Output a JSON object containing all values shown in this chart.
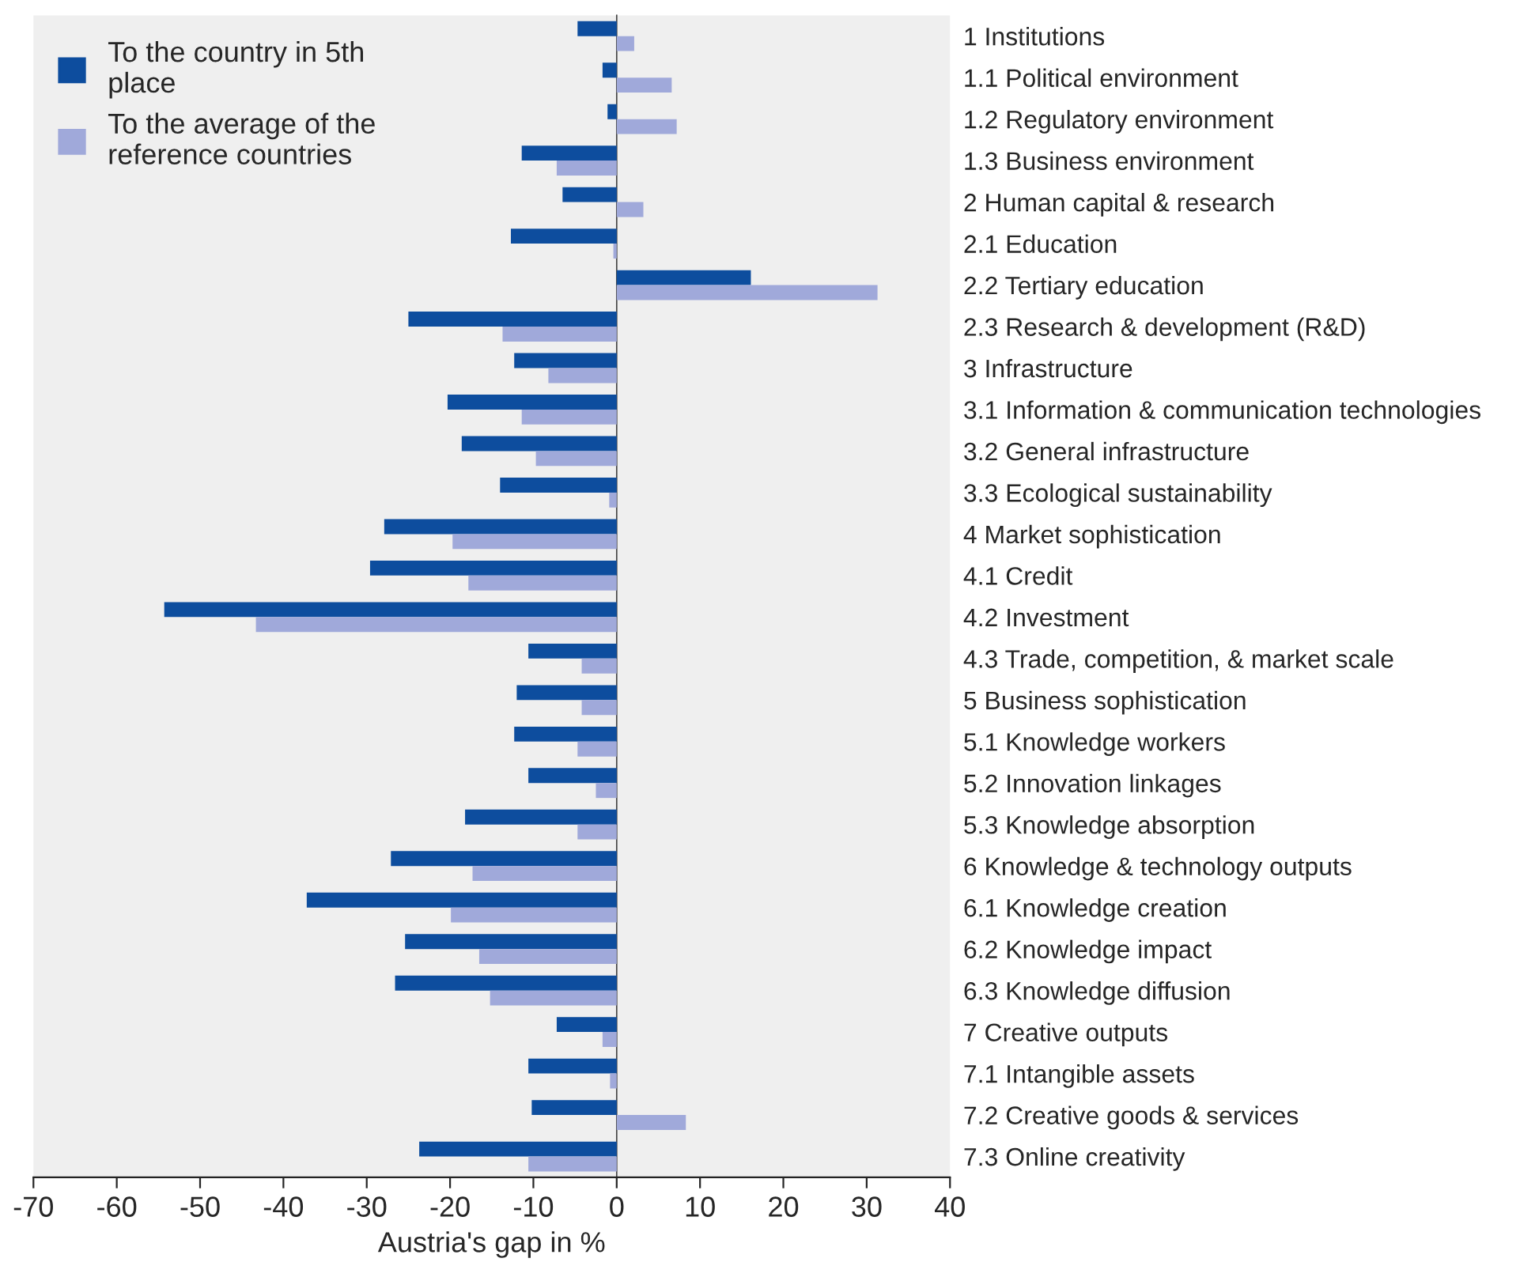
{
  "chart_data": {
    "type": "bar",
    "orientation": "horizontal",
    "xlabel": "Austria's gap in %",
    "categories": [
      "1 Institutions",
      "1.1 Political environment",
      "1.2 Regulatory environment",
      "1.3 Business environment",
      "2 Human capital & research",
      "2.1 Education",
      "2.2 Tertiary education",
      "2.3 Research & development (R&D)",
      "3 Infrastructure",
      "3.1 Information & communication technologies",
      "3.2 General infrastructure",
      "3.3 Ecological sustainability",
      "4 Market sophistication",
      "4.1 Credit",
      "4.2 Investment",
      "4.3 Trade, competition, & market scale",
      "5 Business sophistication",
      "5.1 Knowledge workers",
      "5.2 Innovation linkages",
      "5.3 Knowledge absorption",
      "6 Knowledge & technology outputs",
      "6.1 Knowledge creation",
      "6.2 Knowledge impact",
      "6.3 Knowledge diffusion",
      "7 Creative outputs",
      "7.1 Intangible assets",
      "7.2 Creative goods & services",
      "7.3 Online creativity"
    ],
    "series": [
      {
        "name": "To the country in 5th place",
        "color": "#0d4d9e",
        "values": [
          -4.7,
          -1.7,
          -1.1,
          -11.4,
          -6.5,
          -12.7,
          16.1,
          -25.0,
          -12.3,
          -20.3,
          -18.6,
          -14.0,
          -27.9,
          -29.6,
          -54.3,
          -10.6,
          -12.0,
          -12.3,
          -10.6,
          -18.2,
          -27.1,
          -37.2,
          -25.4,
          -26.6,
          -7.2,
          -10.6,
          -10.2,
          -23.7
        ]
      },
      {
        "name": "To the average of the reference countries",
        "color": "#a0a9da",
        "values": [
          2.1,
          6.6,
          7.2,
          -7.2,
          3.2,
          -0.4,
          31.3,
          -13.7,
          -8.2,
          -11.4,
          -9.7,
          -0.9,
          -19.7,
          -17.8,
          -43.3,
          -4.2,
          -4.2,
          -4.7,
          -2.5,
          -4.7,
          -17.3,
          -19.9,
          -16.5,
          -15.2,
          -1.7,
          -0.8,
          8.3,
          -10.6
        ]
      }
    ],
    "xlim": [
      -70,
      40
    ],
    "xticks": [
      -70,
      -60,
      -50,
      -40,
      -30,
      -20,
      -10,
      0,
      10,
      20,
      30,
      40
    ],
    "legend": "top left"
  }
}
